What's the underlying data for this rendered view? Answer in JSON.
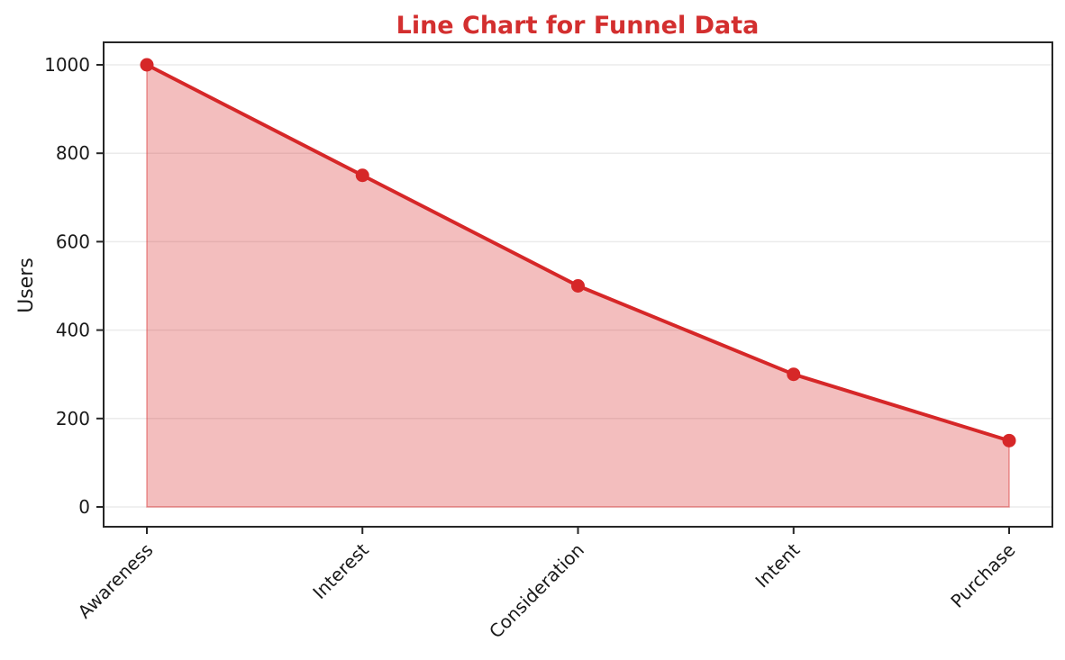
{
  "chart_data": {
    "type": "line",
    "title": "Line Chart for Funnel Data",
    "ylabel": "Users",
    "xlabel": "",
    "categories": [
      "Awareness",
      "Interest",
      "Consideration",
      "Intent",
      "Purchase"
    ],
    "series": [
      {
        "name": "Users",
        "values": [
          1000,
          750,
          500,
          300,
          150
        ]
      }
    ],
    "yticks": [
      0,
      200,
      400,
      600,
      800,
      1000
    ],
    "ylim": [
      0,
      1000
    ],
    "grid": "horizontal",
    "legend": "none",
    "marker": "circle",
    "area_fill": true,
    "style": {
      "line_color": "#d62728",
      "marker_color": "#d62728",
      "fill_color": "rgba(214,39,40,0.30)",
      "fill_edge_color": "rgba(214,39,40,0.45)",
      "title_color": "#d32f2f",
      "axis_color": "#262626",
      "grid_color": "#ebebeb",
      "tick_label_color": "#1a1a1a"
    }
  }
}
